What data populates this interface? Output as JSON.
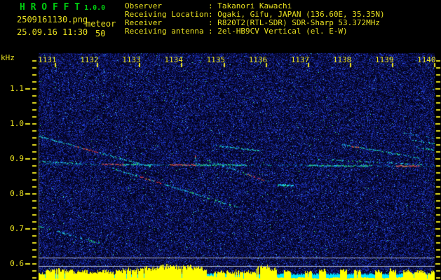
{
  "header": {
    "title": "H R O F F T",
    "version": "1.0.0",
    "filename": "2509161130.png",
    "mode": "meteor",
    "datetime": "25.09.16 11:30",
    "count": "50",
    "info_rows": [
      {
        "label": "Observer",
        "value": "Takanori Kawachi"
      },
      {
        "label": "Receiving Location",
        "value": "Ogaki, Gifu, JAPAN (136.60E, 35.35N)"
      },
      {
        "label": "Receiver",
        "value": "R820T2(RTL-SDR) SDR-Sharp 53.372MHz"
      },
      {
        "label": "Receiving antenna",
        "value": "2el-HB9CV Vertical (el. E-W)"
      }
    ]
  },
  "colors": {
    "text_yellow": "#e8e020",
    "title_green": "#00cc10",
    "trail_cyan": "#20d8ff",
    "trail_green": "#30ff70",
    "trail_red": "#ff4040",
    "trail_orange": "#ff9830",
    "hist_yellow": "#ffff00",
    "hist_cyan": "#00e4ff",
    "grid_gray": "#b4b8cc"
  },
  "chart_data": {
    "type": "heatmap",
    "title": "HROFFT radio meteor spectrogram",
    "ylabel": "kHz",
    "y_ticks": [
      "1.1",
      "1.0",
      "0.9",
      "0.8",
      "0.7",
      "0.6"
    ],
    "x_ticks": [
      "1131",
      "1132",
      "1133",
      "1134",
      "1135",
      "1136",
      "1137",
      "1138",
      "1139",
      "1140"
    ],
    "ylim": [
      0.556,
      1.202
    ],
    "xlim_minutes": [
      1130.6,
      1140.0
    ],
    "grid": false,
    "carrier": {
      "f_start": 0.886,
      "f_end": 0.88,
      "t1": 1130.6,
      "t2": 1140.0,
      "red_segments": [
        [
          1132.1,
          1132.6
        ],
        [
          1133.71,
          1134.31
        ],
        [
          1139.08,
          1139.63
        ]
      ],
      "green_segments": [
        [
          1132.6,
          1133.26
        ],
        [
          1134.31,
          1135.51
        ],
        [
          1137.0,
          1138.5
        ]
      ],
      "companion": {
        "t1": 1130.6,
        "f1": 0.894,
        "t2": 1131.6,
        "f2": 0.888
      },
      "blip": {
        "t": 1134.31,
        "f1": 0.886,
        "f2": 0.912
      }
    },
    "trails": [
      {
        "t1": 1130.6,
        "f1": 0.966,
        "t2": 1133.26,
        "f2": 0.878,
        "bright": 0.65,
        "hot": [
          1131.45,
          1132.01
        ]
      },
      {
        "t1": 1132.35,
        "f1": 0.874,
        "t2": 1135.34,
        "f2": 0.762,
        "bright": 0.55,
        "hot": [
          1132.98,
          1133.51
        ]
      },
      {
        "t1": 1134.61,
        "f1": 0.896,
        "t2": 1136.04,
        "f2": 0.836,
        "bright": 0.6,
        "hot": [
          1135.54,
          1135.94
        ]
      },
      {
        "t1": 1134.73,
        "f1": 0.94,
        "t2": 1135.84,
        "f2": 0.924,
        "bright": 0.75
      },
      {
        "t1": 1130.61,
        "f1": 0.708,
        "t2": 1132.15,
        "f2": 0.656,
        "bright": 0.45
      },
      {
        "t1": 1137.8,
        "f1": 0.942,
        "t2": 1139.62,
        "f2": 0.904,
        "bright": 0.85,
        "hot": [
          1138.0,
          1138.2
        ]
      },
      {
        "t1": 1139.22,
        "f1": 0.976,
        "t2": 1139.98,
        "f2": 0.96,
        "bright": 0.5
      },
      {
        "t1": 1139.47,
        "f1": 0.954,
        "t2": 1139.98,
        "f2": 0.944,
        "bright": 0.55
      },
      {
        "t1": 1139.55,
        "f1": 0.934,
        "t2": 1139.98,
        "f2": 0.926,
        "bright": 0.5
      },
      {
        "t1": 1137.22,
        "f1": 0.9,
        "t2": 1139.83,
        "f2": 0.884,
        "bright": 0.4
      },
      {
        "t1": 1136.27,
        "f1": 0.827,
        "t2": 1136.64,
        "f2": 0.826,
        "bright": 0.9,
        "thick": true
      }
    ],
    "gray_marker_lines_kHz": [
      0.618,
      0.594
    ],
    "signal_levels": [
      0.4,
      0.55,
      0.65,
      0.6,
      0.55,
      0.5,
      0.55,
      0.45,
      0.5,
      0.55,
      0.45,
      0.55,
      0.65,
      0.6,
      0.7,
      0.75,
      0.7,
      0.8,
      0.85,
      0.8,
      0.75,
      0.8,
      0.75,
      0.7,
      0.25,
      0.45,
      0.5,
      0.45,
      0.55,
      0.5,
      0.45,
      0.8,
      0.85,
      0.7,
      0.15,
      0.55,
      0.12,
      0.15,
      0.5,
      0.12,
      0.6,
      0.12,
      0.15,
      0.65,
      0.12,
      0.6,
      0.15,
      0.12,
      0.55,
      0.12,
      0.6,
      0.15,
      0.55,
      0.45,
      0.5,
      0.4,
      0.5
    ]
  }
}
